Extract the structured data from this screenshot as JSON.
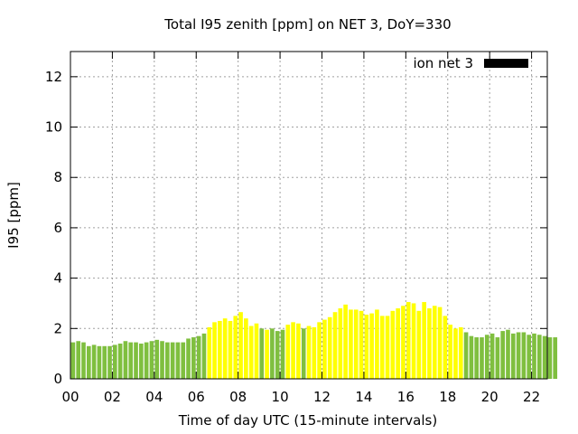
{
  "chart_data": {
    "type": "bar",
    "title": "Total I95 zenith [ppm] on NET 3, DoY=330",
    "xlabel": "Time of day UTC (15-minute intervals)",
    "ylabel": "I95 [ppm]",
    "xlim": [
      0,
      22.75
    ],
    "ylim": [
      0,
      13
    ],
    "x_ticks": [
      0,
      2,
      4,
      6,
      8,
      10,
      12,
      14,
      16,
      18,
      20,
      22
    ],
    "x_tick_labels": [
      "00",
      "02",
      "04",
      "06",
      "08",
      "10",
      "12",
      "14",
      "16",
      "18",
      "20",
      "22"
    ],
    "y_ticks": [
      0,
      2,
      4,
      6,
      8,
      10,
      12
    ],
    "y_tick_labels": [
      "0",
      "2",
      "4",
      "6",
      "8",
      "10",
      "12"
    ],
    "grid": true,
    "legend": {
      "position": "top-right",
      "entries": [
        {
          "label": "ion net 3",
          "color": "#000000"
        }
      ]
    },
    "colors": {
      "day": "#ffff00",
      "night": "#7fbf3f"
    },
    "series": [
      {
        "name": "ion net 3",
        "interval_hours": 0.25,
        "values": [
          1.45,
          1.5,
          1.45,
          1.3,
          1.35,
          1.3,
          1.3,
          1.3,
          1.35,
          1.4,
          1.5,
          1.45,
          1.45,
          1.4,
          1.45,
          1.5,
          1.55,
          1.5,
          1.45,
          1.45,
          1.45,
          1.45,
          1.6,
          1.65,
          1.7,
          1.8,
          2.05,
          2.25,
          2.3,
          2.4,
          2.3,
          2.5,
          2.65,
          2.4,
          2.1,
          2.2,
          2.0,
          1.95,
          2.0,
          1.9,
          1.95,
          2.15,
          2.25,
          2.2,
          2.0,
          2.1,
          2.05,
          2.25,
          2.35,
          2.45,
          2.65,
          2.8,
          2.95,
          2.75,
          2.75,
          2.7,
          2.55,
          2.6,
          2.75,
          2.5,
          2.5,
          2.7,
          2.8,
          2.9,
          3.05,
          3.0,
          2.7,
          3.05,
          2.8,
          2.9,
          2.85,
          2.5,
          2.15,
          2.0,
          2.05,
          1.85,
          1.7,
          1.65,
          1.65,
          1.75,
          1.8,
          1.65,
          1.9,
          1.95,
          1.8,
          1.85,
          1.85,
          1.75,
          1.8,
          1.75,
          1.7,
          1.65,
          1.65
        ],
        "colors_by_bar": [
          "night",
          "night",
          "night",
          "night",
          "night",
          "night",
          "night",
          "night",
          "night",
          "night",
          "night",
          "night",
          "night",
          "night",
          "night",
          "night",
          "night",
          "night",
          "night",
          "night",
          "night",
          "night",
          "night",
          "night",
          "night",
          "night",
          "day",
          "day",
          "day",
          "day",
          "day",
          "day",
          "day",
          "day",
          "day",
          "day",
          "night",
          "day",
          "night",
          "night",
          "night",
          "day",
          "day",
          "day",
          "night",
          "day",
          "day",
          "day",
          "day",
          "day",
          "day",
          "day",
          "day",
          "day",
          "day",
          "day",
          "day",
          "day",
          "day",
          "day",
          "day",
          "day",
          "day",
          "day",
          "day",
          "day",
          "day",
          "day",
          "day",
          "day",
          "day",
          "day",
          "day",
          "day",
          "day",
          "night",
          "night",
          "night",
          "night",
          "night",
          "night",
          "night",
          "night",
          "night",
          "night",
          "night",
          "night",
          "night",
          "night",
          "night",
          "night",
          "night",
          "night"
        ]
      }
    ]
  }
}
